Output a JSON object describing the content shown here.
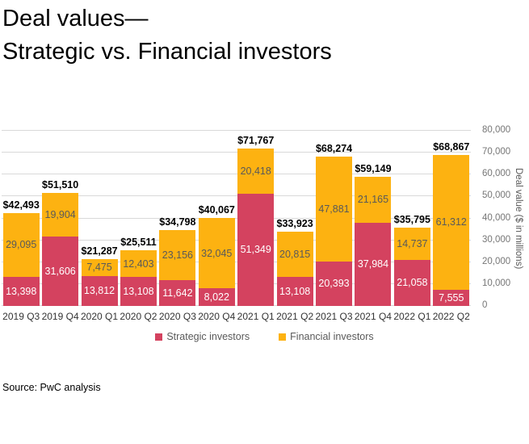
{
  "title": {
    "line1": "Deal values—",
    "line2": "Strategic vs. Financial investors"
  },
  "source_note": "Source: PwC analysis",
  "colors": {
    "strategic": "#d4425f",
    "financial": "#fdb211",
    "gridline": "#d9d9d9"
  },
  "legend": {
    "items": [
      {
        "label": "Strategic investors",
        "color": "#d4425f"
      },
      {
        "label": "Financial investors",
        "color": "#fdb211"
      }
    ]
  },
  "y_axis": {
    "title": "Deal value ($ in millions)",
    "tick_labels": [
      "0",
      "10,000",
      "20,000",
      "30,000",
      "40,000",
      "50,000",
      "60,000",
      "70,000",
      "80,000"
    ]
  },
  "chart_data": {
    "type": "bar",
    "stacked": true,
    "title": "Deal values— Strategic vs. Financial investors",
    "categories": [
      "2019 Q3",
      "2019 Q4",
      "2020 Q1",
      "2020 Q2",
      "2020 Q3",
      "2020 Q4",
      "2021 Q1",
      "2021 Q2",
      "2021 Q3",
      "2021 Q4",
      "2022 Q1",
      "2022 Q2"
    ],
    "series": [
      {
        "name": "Strategic investors",
        "color": "#d4425f",
        "label_color": "#ffffff",
        "values": [
          13398,
          31606,
          13812,
          13108,
          11642,
          8022,
          51349,
          13108,
          20393,
          37984,
          21058,
          7555
        ],
        "labels": [
          "13,398",
          "31,606",
          "13,812",
          "13,108",
          "11,642",
          "8,022",
          "51,349",
          "13,108",
          "20,393",
          "37,984",
          "21,058",
          "7,555"
        ]
      },
      {
        "name": "Financial investors",
        "color": "#fdb211",
        "label_color": "#595959",
        "values": [
          29095,
          19904,
          7475,
          12403,
          23156,
          32045,
          20418,
          20815,
          47881,
          21165,
          14737,
          61312
        ],
        "labels": [
          "29,095",
          "19,904",
          "7,475",
          "12,403",
          "23,156",
          "32,045",
          "20,418",
          "20,815",
          "47,881",
          "21,165",
          "14,737",
          "61,312"
        ]
      }
    ],
    "totals": [
      42493,
      51510,
      21287,
      25511,
      34798,
      40067,
      71767,
      33923,
      68274,
      59149,
      35795,
      68867
    ],
    "total_labels": [
      "$42,493",
      "$51,510",
      "$21,287",
      "$25,511",
      "$34,798",
      "$40,067",
      "$71,767",
      "$33,923",
      "$68,274",
      "$59,149",
      "$35,795",
      "$68,867"
    ],
    "ylabel": "Deal value ($ in millions)",
    "ylim": [
      0,
      80000
    ],
    "ytick_step": 10000,
    "grid": true,
    "legend_position": "bottom"
  }
}
